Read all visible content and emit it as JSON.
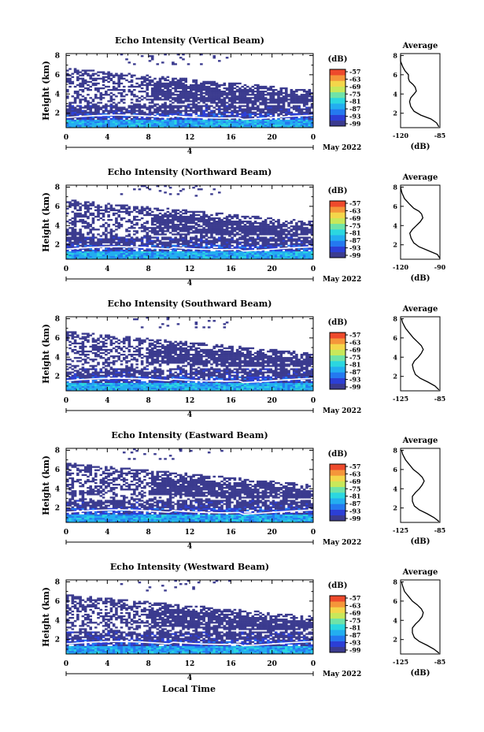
{
  "figure": {
    "bottom_xlabel": "Local Time",
    "date_label": "May 2022",
    "colorbar_unit": "(dB)",
    "avg_title": "Average",
    "colormap": [
      "#3b3b8f",
      "#2c3fd6",
      "#2479f0",
      "#23aef0",
      "#2bd7e0",
      "#6fe3a8",
      "#c8e85a",
      "#f4d64a",
      "#f5963a",
      "#ee4a2c"
    ]
  },
  "chart_data": [
    {
      "type": "heatmap",
      "title": "Echo Intensity (Vertical Beam)",
      "ylabel": "Height (km)",
      "x_ticks": [
        "0",
        "4",
        "8",
        "12",
        "16",
        "20",
        "0"
      ],
      "x_secondary_label": "4",
      "y_ticks": [
        "2",
        "4",
        "6",
        "8"
      ],
      "ylim": [
        0.5,
        8.2
      ],
      "xlim": [
        0,
        24
      ],
      "colorbar_ticks": [
        "-57",
        "-63",
        "-69",
        "-75",
        "-81",
        "-87",
        "-93",
        "-99"
      ],
      "average": {
        "title": "Average",
        "xlabel": "(dB)",
        "xlim": [
          -120,
          -85
        ],
        "x_ticks": [
          "-120",
          "-85"
        ],
        "y_ticks": [
          "2",
          "4",
          "6",
          "8"
        ],
        "profile": [
          [
            -86,
            0.6
          ],
          [
            -88,
            1.0
          ],
          [
            -93,
            1.4
          ],
          [
            -102,
            1.8
          ],
          [
            -108,
            2.2
          ],
          [
            -111,
            2.7
          ],
          [
            -112,
            3.2
          ],
          [
            -111,
            3.6
          ],
          [
            -108,
            4.0
          ],
          [
            -106,
            4.3
          ],
          [
            -107,
            4.7
          ],
          [
            -109,
            5.0
          ],
          [
            -112,
            5.3
          ],
          [
            -113,
            5.6
          ],
          [
            -113,
            6.0
          ],
          [
            -116,
            6.4
          ],
          [
            -118,
            6.8
          ],
          [
            -120,
            7.4
          ],
          [
            -120,
            8.0
          ]
        ]
      }
    },
    {
      "type": "heatmap",
      "title": "Echo Intensity (Northward Beam)",
      "ylabel": "Height (km)",
      "x_ticks": [
        "0",
        "4",
        "8",
        "12",
        "16",
        "20",
        "0"
      ],
      "x_secondary_label": "4",
      "y_ticks": [
        "2",
        "4",
        "6",
        "8"
      ],
      "ylim": [
        0.5,
        8.2
      ],
      "xlim": [
        0,
        24
      ],
      "colorbar_ticks": [
        "-57",
        "-63",
        "-69",
        "-75",
        "-81",
        "-87",
        "-93",
        "-99"
      ],
      "average": {
        "title": "Average",
        "xlabel": "(dB)",
        "xlim": [
          -120,
          -90
        ],
        "x_ticks": [
          "-120",
          "-90"
        ],
        "y_ticks": [
          "2",
          "4",
          "6",
          "8"
        ],
        "profile": [
          [
            -90,
            0.6
          ],
          [
            -92,
            1.0
          ],
          [
            -99,
            1.4
          ],
          [
            -106,
            1.8
          ],
          [
            -110,
            2.2
          ],
          [
            -112,
            2.7
          ],
          [
            -113,
            3.2
          ],
          [
            -111,
            3.6
          ],
          [
            -108,
            4.0
          ],
          [
            -105,
            4.4
          ],
          [
            -103,
            4.8
          ],
          [
            -104,
            5.2
          ],
          [
            -106,
            5.5
          ],
          [
            -110,
            5.8
          ],
          [
            -113,
            6.2
          ],
          [
            -117,
            6.8
          ],
          [
            -119,
            7.4
          ],
          [
            -120,
            8.0
          ]
        ]
      }
    },
    {
      "type": "heatmap",
      "title": "Echo Intensity (Southward Beam)",
      "ylabel": "Height (km)",
      "x_ticks": [
        "0",
        "4",
        "8",
        "12",
        "16",
        "20",
        "0"
      ],
      "x_secondary_label": "4",
      "y_ticks": [
        "2",
        "4",
        "6",
        "8"
      ],
      "ylim": [
        0.5,
        8.2
      ],
      "xlim": [
        0,
        24
      ],
      "colorbar_ticks": [
        "-57",
        "-63",
        "-69",
        "-75",
        "-81",
        "-87",
        "-93",
        "-99"
      ],
      "average": {
        "title": "Average",
        "xlabel": "",
        "xlim": [
          -125,
          -85
        ],
        "x_ticks": [
          "-125",
          "-85"
        ],
        "y_ticks": [
          "2",
          "4",
          "6",
          "8"
        ],
        "profile": [
          [
            -86,
            0.6
          ],
          [
            -90,
            1.0
          ],
          [
            -97,
            1.4
          ],
          [
            -105,
            1.8
          ],
          [
            -110,
            2.2
          ],
          [
            -112,
            2.7
          ],
          [
            -113,
            3.2
          ],
          [
            -111,
            3.6
          ],
          [
            -107,
            4.0
          ],
          [
            -104,
            4.4
          ],
          [
            -102,
            4.8
          ],
          [
            -104,
            5.2
          ],
          [
            -108,
            5.6
          ],
          [
            -112,
            6.0
          ],
          [
            -116,
            6.5
          ],
          [
            -120,
            7.0
          ],
          [
            -123,
            7.6
          ],
          [
            -124,
            8.0
          ]
        ]
      }
    },
    {
      "type": "heatmap",
      "title": "Echo Intensity (Eastward Beam)",
      "ylabel": "Height (km)",
      "x_ticks": [
        "0",
        "4",
        "8",
        "12",
        "16",
        "20",
        "0"
      ],
      "x_secondary_label": "4",
      "y_ticks": [
        "2",
        "4",
        "6",
        "8"
      ],
      "ylim": [
        0.5,
        8.2
      ],
      "xlim": [
        0,
        24
      ],
      "colorbar_ticks": [
        "-57",
        "-63",
        "-69",
        "-75",
        "-81",
        "-87",
        "-93",
        "-99"
      ],
      "average": {
        "title": "Average",
        "xlabel": "(dB)",
        "xlim": [
          -125,
          -85
        ],
        "x_ticks": [
          "-125",
          "-85"
        ],
        "y_ticks": [
          "2",
          "4",
          "6",
          "8"
        ],
        "profile": [
          [
            -86,
            0.6
          ],
          [
            -91,
            1.0
          ],
          [
            -98,
            1.4
          ],
          [
            -106,
            1.8
          ],
          [
            -111,
            2.2
          ],
          [
            -113,
            2.7
          ],
          [
            -113,
            3.2
          ],
          [
            -110,
            3.6
          ],
          [
            -106,
            4.0
          ],
          [
            -103,
            4.4
          ],
          [
            -101,
            4.8
          ],
          [
            -103,
            5.2
          ],
          [
            -107,
            5.6
          ],
          [
            -112,
            6.0
          ],
          [
            -116,
            6.5
          ],
          [
            -120,
            7.0
          ],
          [
            -123,
            7.6
          ],
          [
            -124,
            8.0
          ]
        ]
      }
    },
    {
      "type": "heatmap",
      "title": "Echo Intensity (Westward Beam)",
      "ylabel": "Height (km)",
      "x_ticks": [
        "0",
        "4",
        "8",
        "12",
        "16",
        "20",
        "0"
      ],
      "x_secondary_label": "4",
      "y_ticks": [
        "2",
        "4",
        "6",
        "8"
      ],
      "ylim": [
        0.5,
        8.2
      ],
      "xlim": [
        0,
        24
      ],
      "colorbar_ticks": [
        "-57",
        "-63",
        "-69",
        "-75",
        "-81",
        "-87",
        "-93",
        "-99"
      ],
      "average": {
        "title": "Average",
        "xlabel": "(dB)",
        "xlim": [
          -125,
          -85
        ],
        "x_ticks": [
          "-125",
          "-85"
        ],
        "y_ticks": [
          "2",
          "4",
          "6",
          "8"
        ],
        "profile": [
          [
            -86,
            0.6
          ],
          [
            -91,
            1.0
          ],
          [
            -98,
            1.4
          ],
          [
            -106,
            1.8
          ],
          [
            -111,
            2.2
          ],
          [
            -113,
            2.7
          ],
          [
            -113,
            3.2
          ],
          [
            -110,
            3.6
          ],
          [
            -106,
            4.0
          ],
          [
            -103,
            4.4
          ],
          [
            -102,
            4.8
          ],
          [
            -104,
            5.2
          ],
          [
            -108,
            5.6
          ],
          [
            -113,
            6.0
          ],
          [
            -117,
            6.5
          ],
          [
            -121,
            7.0
          ],
          [
            -123,
            7.6
          ],
          [
            -124,
            8.0
          ]
        ]
      }
    }
  ]
}
